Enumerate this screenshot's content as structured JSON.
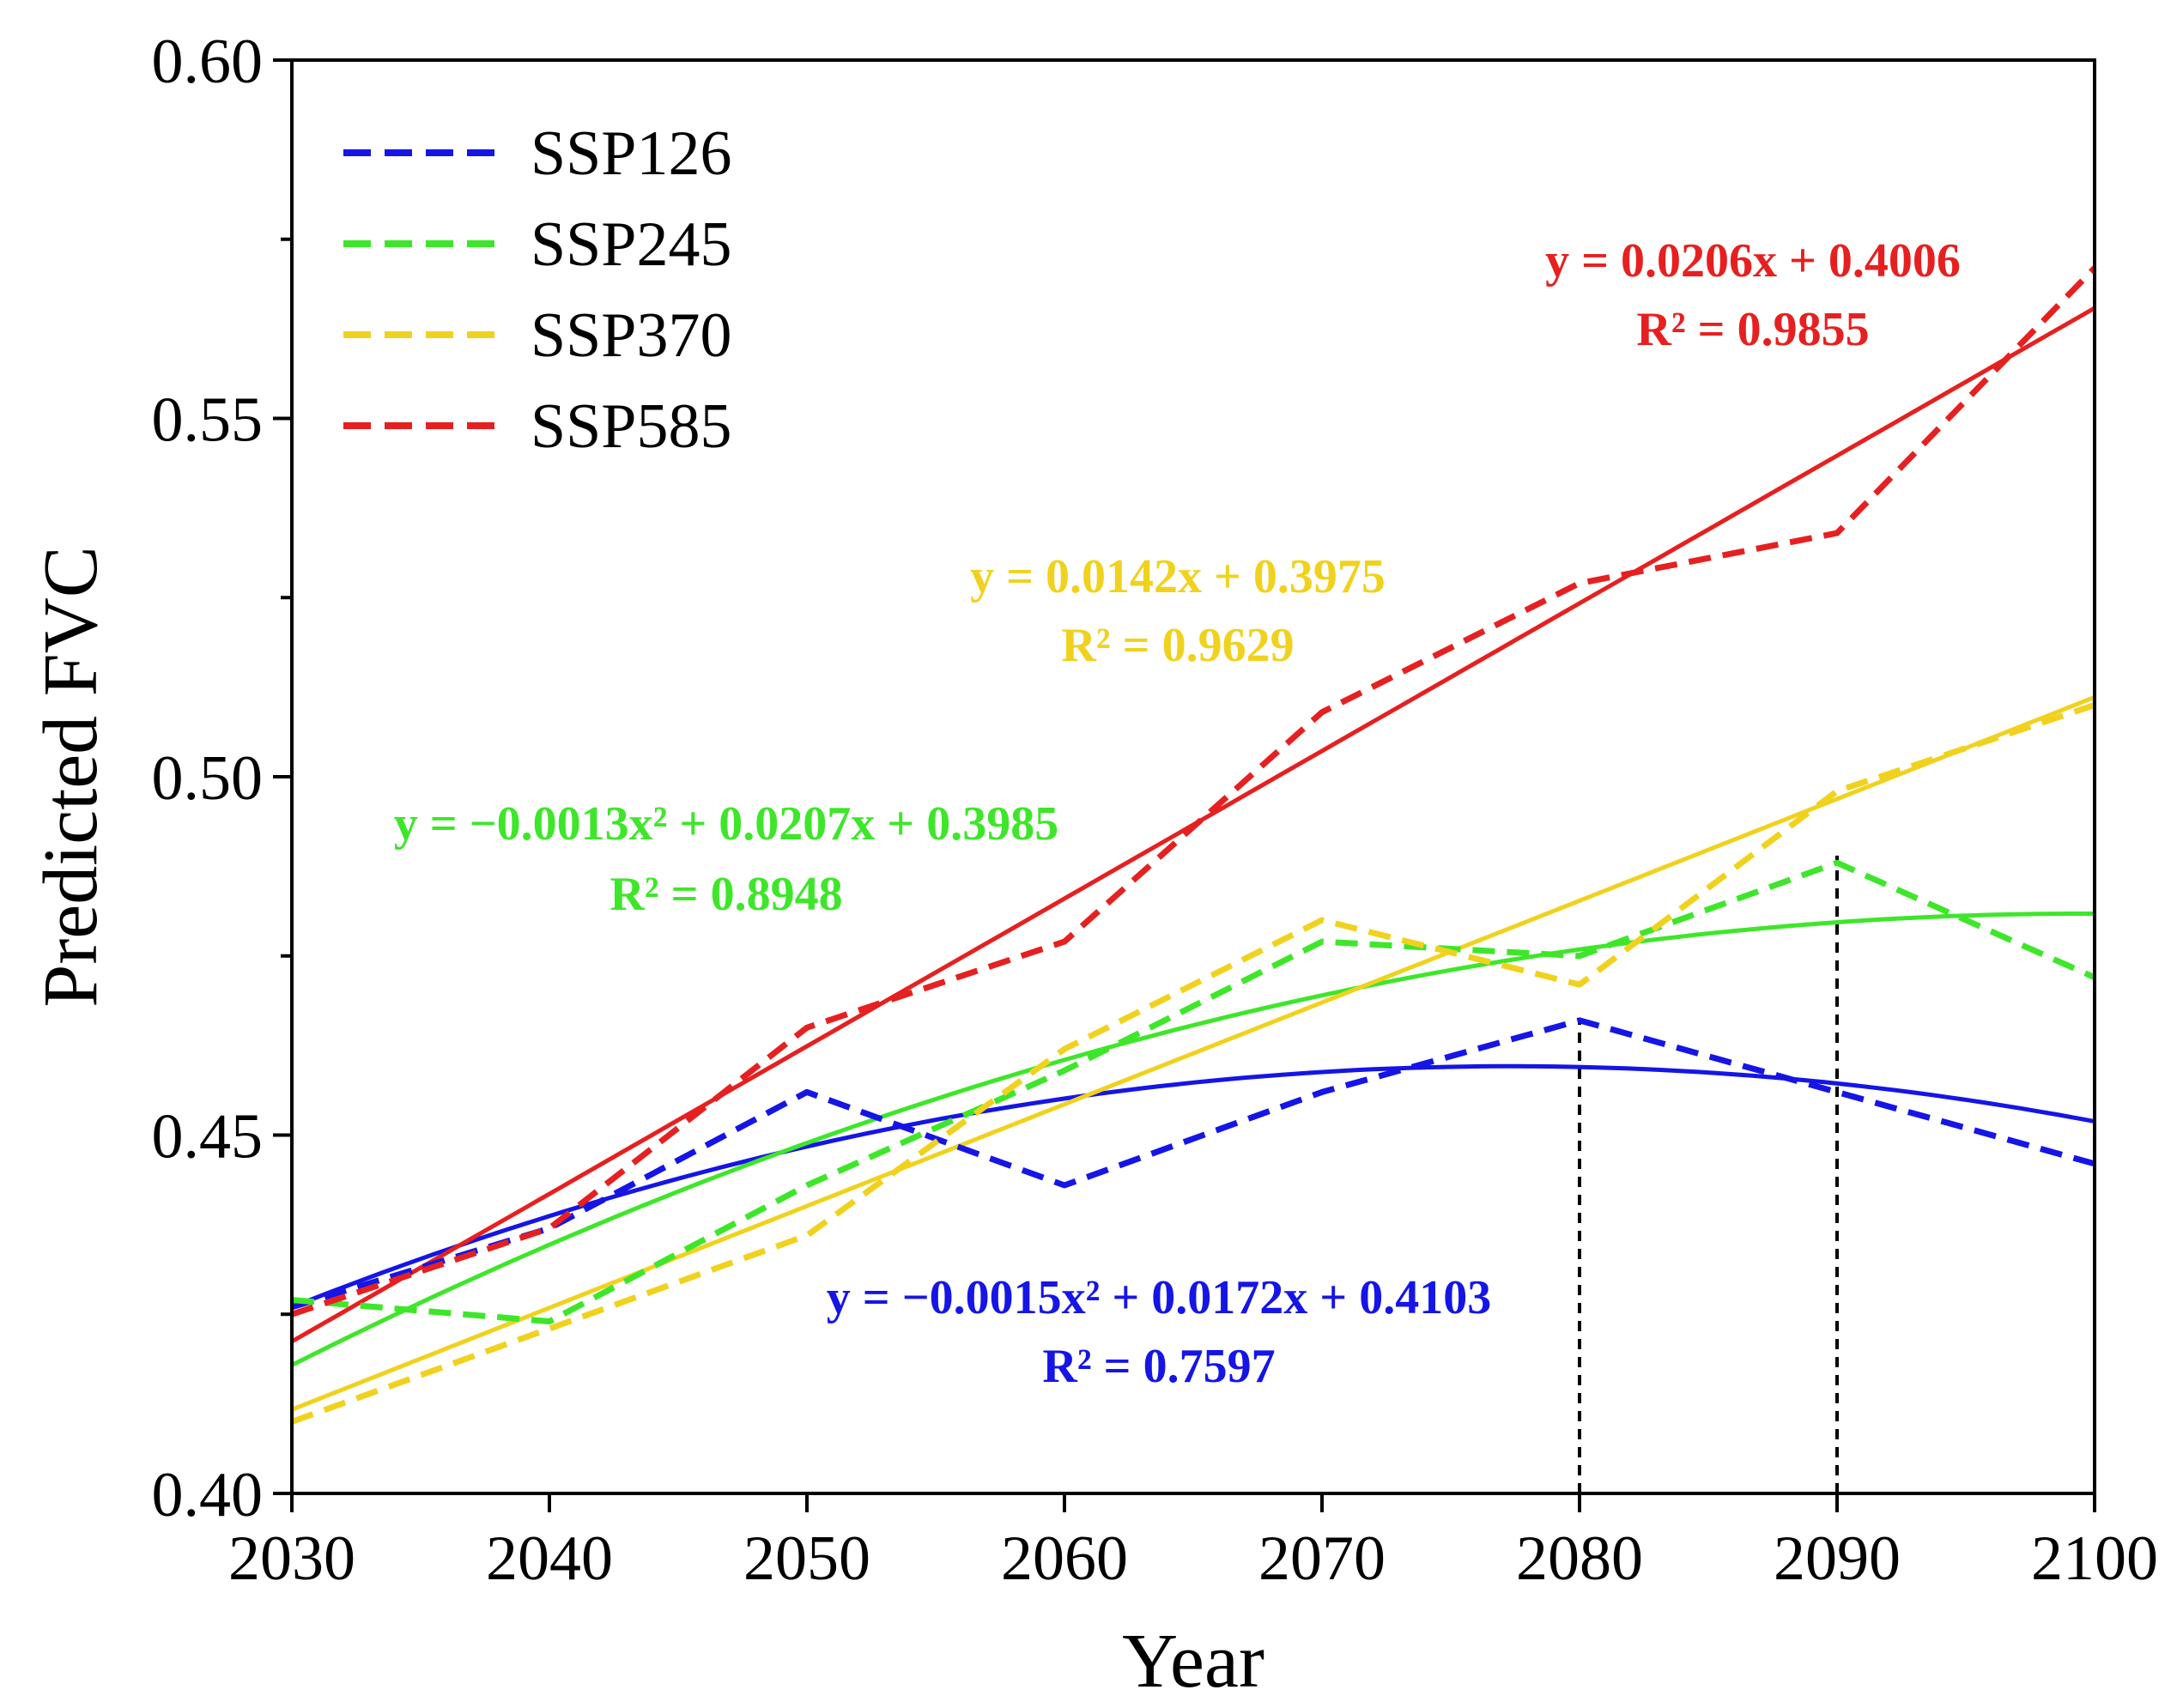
{
  "chart_data": {
    "type": "line",
    "title": "",
    "xlabel": "Year",
    "ylabel": "Predicted FVC",
    "xlim": [
      2030,
      2100
    ],
    "ylim": [
      0.4,
      0.6
    ],
    "x_ticks": [
      2030,
      2040,
      2050,
      2060,
      2070,
      2080,
      2090,
      2100
    ],
    "x_tick_labels": [
      "2030",
      "2040",
      "2050",
      "2060",
      "2070",
      "2080",
      "2090",
      "2100"
    ],
    "y_ticks": [
      0.4,
      0.45,
      0.5,
      0.55,
      0.6
    ],
    "y_tick_labels": [
      "0.40",
      "0.45",
      "0.50",
      "0.55",
      "0.60"
    ],
    "y_minor_step": 0.025,
    "grid": false,
    "legend_position": "top-left",
    "x": [
      2030,
      2040,
      2050,
      2060,
      2070,
      2080,
      2090,
      2100
    ],
    "series": [
      {
        "name": "SSP126",
        "color": "#1515e6",
        "values": [
          0.426,
          0.437,
          0.456,
          0.443,
          0.456,
          0.466,
          0.456,
          0.446
        ],
        "fit": {
          "kind": "quadratic",
          "a": -0.0015,
          "b": 0.0172,
          "c": 0.4103,
          "r2": 0.7597
        },
        "equation": "y = −0.0015x² + 0.0172x + 0.4103",
        "r2_label": "R² = 0.7597"
      },
      {
        "name": "SSP245",
        "color": "#3ee62a",
        "values": [
          0.427,
          0.424,
          0.443,
          0.459,
          0.477,
          0.475,
          0.488,
          0.472
        ],
        "fit": {
          "kind": "quadratic",
          "a": -0.0013,
          "b": 0.0207,
          "c": 0.3985,
          "r2": 0.8948
        },
        "equation": "y = −0.0013x² + 0.0207x + 0.3985",
        "r2_label": "R² = 0.8948"
      },
      {
        "name": "SSP370",
        "color": "#f0d21e",
        "values": [
          0.41,
          0.423,
          0.436,
          0.462,
          0.48,
          0.471,
          0.498,
          0.51
        ],
        "fit": {
          "kind": "linear",
          "a": 0.0142,
          "b": 0.3975,
          "r2": 0.9629
        },
        "equation": "y = 0.0142x + 0.3975",
        "r2_label": "R² = 0.9629"
      },
      {
        "name": "SSP585",
        "color": "#e62020",
        "values": [
          0.425,
          0.437,
          0.465,
          0.477,
          0.509,
          0.527,
          0.534,
          0.571
        ],
        "fit": {
          "kind": "linear",
          "a": 0.0206,
          "b": 0.4006,
          "r2": 0.9855
        },
        "equation": "y = 0.0206x + 0.4006",
        "r2_label": "R² = 0.9855"
      }
    ],
    "reference_lines": [
      {
        "x": 2080,
        "from": 0.4,
        "to": 0.466,
        "style": "dashed",
        "color": "#000000"
      },
      {
        "x": 2090,
        "from": 0.4,
        "to": 0.489,
        "style": "dashed",
        "color": "#000000"
      }
    ],
    "annotations": [
      {
        "series": "SSP585",
        "equation": "y = 0.0206x + 0.4006",
        "r2": "R² = 0.9855"
      },
      {
        "series": "SSP370",
        "equation": "y = 0.0142x + 0.3975",
        "r2": "R² = 0.9629"
      },
      {
        "series": "SSP245",
        "equation": "y = −0.0013x² + 0.0207x + 0.3985",
        "r2": "R² = 0.8948"
      },
      {
        "series": "SSP126",
        "equation": "y = −0.0015x² + 0.0172x + 0.4103",
        "r2": "R² = 0.7597"
      }
    ]
  }
}
